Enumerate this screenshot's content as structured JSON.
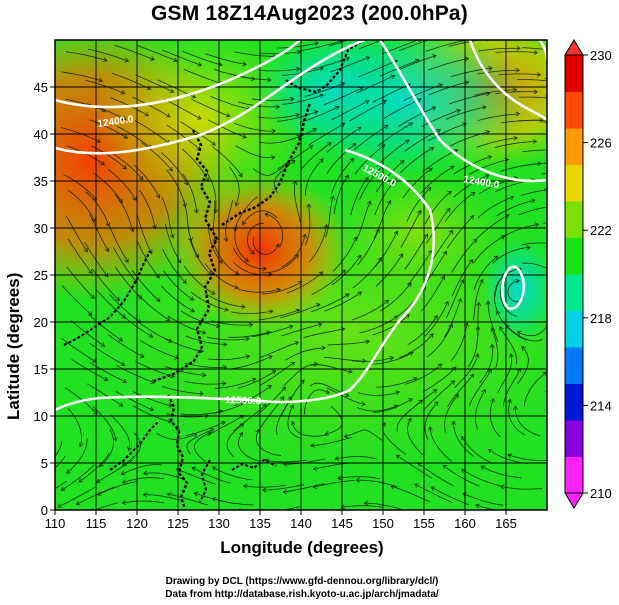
{
  "title": "GSM 18Z14Aug2023 (200.0hPa)",
  "x_axis": {
    "label": "Longitude (degrees)",
    "range": [
      110,
      170
    ],
    "ticks": [
      110,
      115,
      120,
      125,
      130,
      135,
      140,
      145,
      150,
      155,
      160,
      165
    ]
  },
  "y_axis": {
    "label": "Latitude  (degrees)",
    "range": [
      0,
      50
    ],
    "ticks": [
      0,
      5,
      10,
      15,
      20,
      25,
      30,
      35,
      40,
      45
    ]
  },
  "colorbar": {
    "min": 210,
    "max": 230,
    "tick_labels": [
      "230",
      "226",
      "222",
      "218",
      "214",
      "210"
    ],
    "tick_values": [
      230,
      226,
      222,
      218,
      214,
      210
    ],
    "colors": [
      "#ff22ff",
      "#8a00e0",
      "#0018d8",
      "#0078ff",
      "#00d0e8",
      "#00e890",
      "#18e418",
      "#7ce000",
      "#e8d800",
      "#ff9a00",
      "#ff4a00",
      "#e00000"
    ]
  },
  "contours": {
    "labels": [
      "12400.0",
      "12500.0",
      "12400.0",
      "12500.0"
    ],
    "color": "#ffffff"
  },
  "credits": {
    "line1": "Drawing by DCL (https://www.gfd-dennou.org/library/dcl/)",
    "line2": "Data from http://database.rish.kyoto-u.ac.jp/arch/jmadata/"
  }
}
